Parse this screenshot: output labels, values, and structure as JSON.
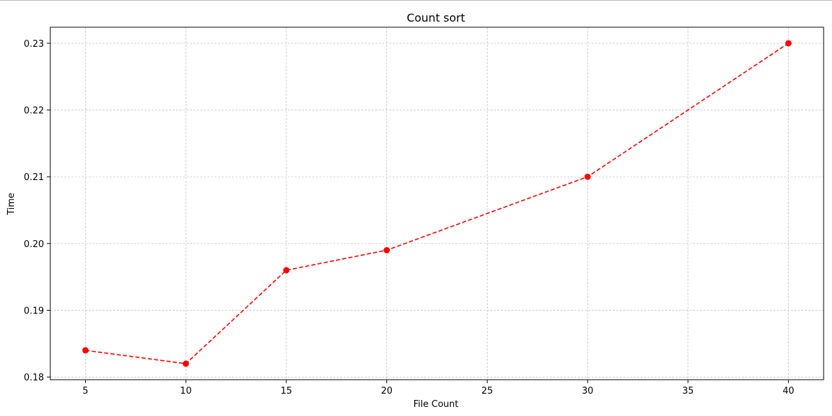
{
  "chart_data": {
    "type": "line",
    "title": "Count sort",
    "xlabel": "File Count",
    "ylabel": "Time",
    "x": [
      5,
      10,
      15,
      20,
      30,
      40
    ],
    "series": [
      {
        "values": [
          0.184,
          0.182,
          0.196,
          0.199,
          0.21,
          0.23
        ],
        "color": "#ff0000",
        "line_style": "dashed",
        "marker": "circle"
      }
    ],
    "xlim": [
      3.25,
      41.75
    ],
    "ylim": [
      0.1796,
      0.2324
    ],
    "xticks": [
      5,
      10,
      15,
      20,
      25,
      30,
      35,
      40
    ],
    "xtick_labels": [
      "5",
      "10",
      "15",
      "20",
      "25",
      "30",
      "35",
      "40"
    ],
    "yticks": [
      0.18,
      0.19,
      0.2,
      0.21,
      0.22,
      0.23
    ],
    "ytick_labels": [
      "0.18",
      "0.19",
      "0.20",
      "0.21",
      "0.22",
      "0.23"
    ],
    "grid": true,
    "grid_style": "dashed",
    "grid_color": "#b0b0b0",
    "legend": "none"
  }
}
